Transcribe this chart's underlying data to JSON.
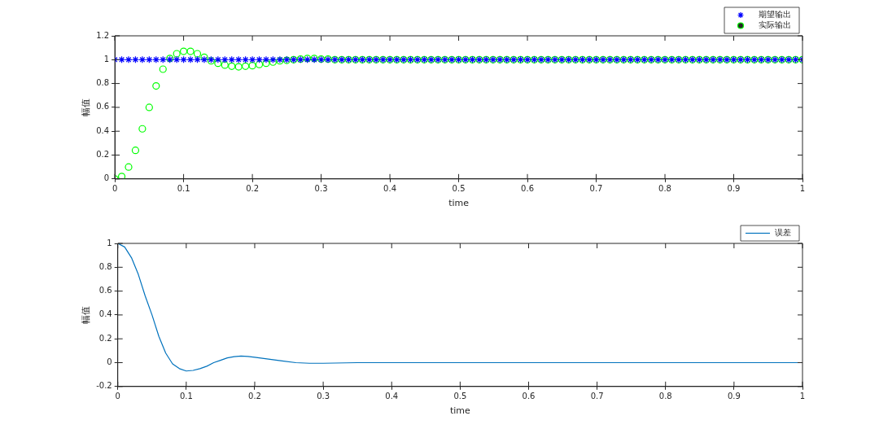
{
  "chart_data": [
    {
      "type": "scatter",
      "xlabel": "time",
      "ylabel": "幅值",
      "xlim": [
        0,
        1
      ],
      "ylim": [
        0,
        1.2
      ],
      "xticks": [
        0,
        0.1,
        0.2,
        0.3,
        0.4,
        0.5,
        0.6,
        0.7,
        0.8,
        0.9,
        1
      ],
      "yticks": [
        0,
        0.2,
        0.4,
        0.6,
        0.8,
        1,
        1.2
      ],
      "grid": false,
      "legend": "top right",
      "x": [
        0,
        0.01,
        0.02,
        0.03,
        0.04,
        0.05,
        0.06,
        0.07,
        0.08,
        0.09,
        0.1,
        0.11,
        0.12,
        0.13,
        0.14,
        0.15,
        0.16,
        0.17,
        0.18,
        0.19,
        0.2,
        0.21,
        0.22,
        0.23,
        0.24,
        0.25,
        0.26,
        0.27,
        0.28,
        0.29,
        0.3,
        0.31,
        0.32,
        0.33,
        0.34,
        0.35,
        0.36,
        0.37,
        0.38,
        0.39,
        0.4,
        0.41,
        0.42,
        0.43,
        0.44,
        0.45,
        0.46,
        0.47,
        0.48,
        0.49,
        0.5,
        0.51,
        0.52,
        0.53,
        0.54,
        0.55,
        0.56,
        0.57,
        0.58,
        0.59,
        0.6,
        0.61,
        0.62,
        0.63,
        0.64,
        0.65,
        0.66,
        0.67,
        0.68,
        0.69,
        0.7,
        0.71,
        0.72,
        0.73,
        0.74,
        0.75,
        0.76,
        0.77,
        0.78,
        0.79,
        0.8,
        0.81,
        0.82,
        0.83,
        0.84,
        0.85,
        0.86,
        0.87,
        0.88,
        0.89,
        0.9,
        0.91,
        0.92,
        0.93,
        0.94,
        0.95,
        0.96,
        0.97,
        0.98,
        0.99,
        1
      ],
      "series": [
        {
          "name": "期望输出",
          "color": "#0000ff",
          "marker": "cross",
          "values": [
            1,
            1,
            1,
            1,
            1,
            1,
            1,
            1,
            1,
            1,
            1,
            1,
            1,
            1,
            1,
            1,
            1,
            1,
            1,
            1,
            1,
            1,
            1,
            1,
            1,
            1,
            1,
            1,
            1,
            1,
            1,
            1,
            1,
            1,
            1,
            1,
            1,
            1,
            1,
            1,
            1,
            1,
            1,
            1,
            1,
            1,
            1,
            1,
            1,
            1,
            1,
            1,
            1,
            1,
            1,
            1,
            1,
            1,
            1,
            1,
            1,
            1,
            1,
            1,
            1,
            1,
            1,
            1,
            1,
            1,
            1,
            1,
            1,
            1,
            1,
            1,
            1,
            1,
            1,
            1,
            1,
            1,
            1,
            1,
            1,
            1,
            1,
            1,
            1,
            1,
            1,
            1,
            1,
            1,
            1,
            1,
            1,
            1,
            1,
            1,
            1
          ]
        },
        {
          "name": "实际输出",
          "color": "#00ff00",
          "marker": "circle",
          "values": [
            0,
            0.02,
            0.1,
            0.24,
            0.42,
            0.6,
            0.78,
            0.92,
            1.01,
            1.05,
            1.07,
            1.07,
            1.05,
            1.02,
            0.99,
            0.97,
            0.955,
            0.945,
            0.94,
            0.945,
            0.95,
            0.96,
            0.97,
            0.98,
            0.99,
            0.995,
            1,
            1.005,
            1.01,
            1.01,
            1.005,
            1.005,
            1,
            1,
            1,
            1,
            1,
            1,
            1,
            1,
            1,
            1,
            1,
            1,
            1,
            1,
            1,
            1,
            1,
            1,
            1,
            1,
            1,
            1,
            1,
            1,
            1,
            1,
            1,
            1,
            1,
            1,
            1,
            1,
            1,
            1,
            1,
            1,
            1,
            1,
            1,
            1,
            1,
            1,
            1,
            1,
            1,
            1,
            1,
            1,
            1,
            1,
            1,
            1,
            1,
            1,
            1,
            1,
            1,
            1,
            1,
            1,
            1,
            1,
            1,
            1,
            1,
            1,
            1,
            1,
            1
          ]
        }
      ]
    },
    {
      "type": "line",
      "xlabel": "time",
      "ylabel": "幅值",
      "xlim": [
        0,
        1
      ],
      "ylim": [
        -0.2,
        1
      ],
      "xticks": [
        0,
        0.1,
        0.2,
        0.3,
        0.4,
        0.5,
        0.6,
        0.7,
        0.8,
        0.9,
        1
      ],
      "yticks": [
        -0.2,
        0,
        0.2,
        0.4,
        0.6,
        0.8,
        1
      ],
      "grid": false,
      "legend": "top right",
      "marker": "none",
      "line_style": "solid",
      "x": [
        0,
        0.01,
        0.02,
        0.03,
        0.04,
        0.05,
        0.06,
        0.07,
        0.08,
        0.09,
        0.1,
        0.11,
        0.12,
        0.13,
        0.14,
        0.15,
        0.16,
        0.17,
        0.18,
        0.19,
        0.2,
        0.22,
        0.24,
        0.26,
        0.28,
        0.3,
        0.35,
        0.4,
        0.5,
        0.6,
        0.7,
        0.8,
        0.9,
        1
      ],
      "series": [
        {
          "name": "误差",
          "color": "#0072bd",
          "values": [
            1,
            0.97,
            0.88,
            0.74,
            0.56,
            0.4,
            0.22,
            0.08,
            -0.01,
            -0.05,
            -0.07,
            -0.065,
            -0.05,
            -0.03,
            0,
            0.02,
            0.04,
            0.05,
            0.055,
            0.052,
            0.045,
            0.03,
            0.015,
            0,
            -0.005,
            -0.005,
            0,
            0,
            0,
            0,
            0,
            0,
            0,
            0
          ]
        }
      ]
    }
  ]
}
